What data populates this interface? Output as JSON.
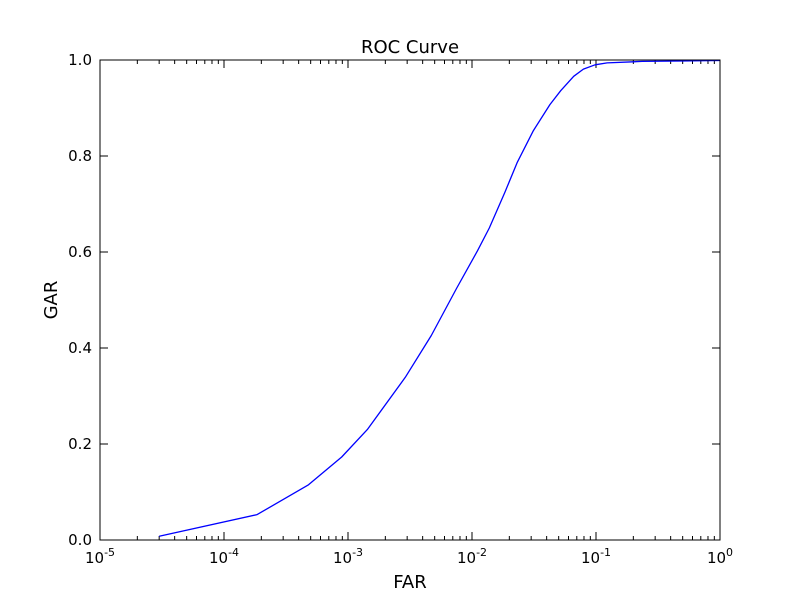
{
  "chart_data": {
    "type": "line",
    "title": "ROC Curve",
    "xlabel": "FAR",
    "ylabel": "GAR",
    "xscale": "log",
    "xlim": [
      1e-05,
      1
    ],
    "ylim": [
      0.0,
      1.0
    ],
    "grid": false,
    "legend": "none",
    "x_tick_labels": [
      {
        "value": 1e-05,
        "base": "10",
        "exp": "-5"
      },
      {
        "value": 0.0001,
        "base": "10",
        "exp": "-4"
      },
      {
        "value": 0.001,
        "base": "10",
        "exp": "-3"
      },
      {
        "value": 0.01,
        "base": "10",
        "exp": "-2"
      },
      {
        "value": 0.1,
        "base": "10",
        "exp": "-1"
      },
      {
        "value": 1,
        "base": "10",
        "exp": "0"
      }
    ],
    "y_tick_labels": [
      {
        "value": 0.0,
        "label": "0.0"
      },
      {
        "value": 0.2,
        "label": "0.2"
      },
      {
        "value": 0.4,
        "label": "0.4"
      },
      {
        "value": 0.6,
        "label": "0.6"
      },
      {
        "value": 0.8,
        "label": "0.8"
      },
      {
        "value": 1.0,
        "label": "1.0"
      }
    ],
    "series": [
      {
        "color": "#0000ff",
        "x": [
          3e-05,
          0.000185,
          0.00048,
          0.00089,
          0.00143,
          0.0029,
          0.0047,
          0.0075,
          0.0111,
          0.0138,
          0.0184,
          0.0231,
          0.0313,
          0.0425,
          0.0519,
          0.0661,
          0.0791,
          0.0984,
          0.123,
          0.236,
          0.504,
          1.0
        ],
        "y": [
          0.008,
          0.053,
          0.115,
          0.173,
          0.23,
          0.339,
          0.426,
          0.524,
          0.603,
          0.65,
          0.724,
          0.786,
          0.853,
          0.907,
          0.936,
          0.966,
          0.981,
          0.99,
          0.994,
          0.997,
          0.998,
          0.999
        ]
      }
    ]
  }
}
